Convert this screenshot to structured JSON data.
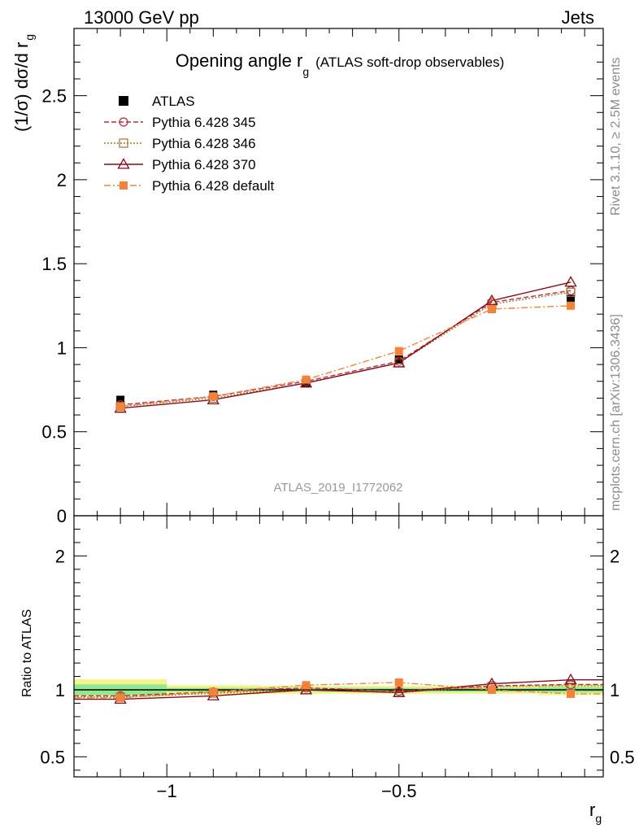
{
  "header": {
    "energy_label": "13000 GeV pp",
    "process_label": "Jets"
  },
  "side_labels": {
    "rivet": "Rivet 3.1.10, ≥ 2.5M events",
    "mcplots": "mcplots.cern.ch [arXiv:1306.3436]"
  },
  "main_panel": {
    "title_prefix": "Opening angle r",
    "title_sub": "g",
    "title_suffix": "(ATLAS soft-drop observables)",
    "ylabel": "(1/σ) dσ/d r",
    "ylabel_sub": "g",
    "analysis_id": "ATLAS_2019_I1772062",
    "y_ticks": [
      {
        "value": 0,
        "label": "0"
      },
      {
        "value": 0.5,
        "label": "0.5"
      },
      {
        "value": 1,
        "label": "1"
      },
      {
        "value": 1.5,
        "label": "1.5"
      },
      {
        "value": 2,
        "label": "2"
      },
      {
        "value": 2.5,
        "label": "2.5"
      }
    ]
  },
  "ratio_panel": {
    "ylabel": "Ratio to ATLAS",
    "y_ticks": [
      {
        "value": 0.5,
        "label": "0.5"
      },
      {
        "value": 1,
        "label": "1"
      },
      {
        "value": 2,
        "label": "2"
      }
    ]
  },
  "x_axis": {
    "label": "r",
    "label_sub": "g",
    "ticks": [
      {
        "value": -1,
        "label": "−1"
      },
      {
        "value": -0.5,
        "label": "−0.5"
      }
    ]
  },
  "legend": [
    {
      "name": "ATLAS",
      "color": "#000000",
      "marker": "filled-square",
      "line": "none"
    },
    {
      "name": "Pythia 6.428 345",
      "color": "#b03040",
      "marker": "open-circle",
      "line": "dashed"
    },
    {
      "name": "Pythia 6.428 346",
      "color": "#a0782c",
      "marker": "open-square",
      "line": "dotted"
    },
    {
      "name": "Pythia 6.428 370",
      "color": "#8b0a1a",
      "marker": "open-triangle",
      "line": "solid"
    },
    {
      "name": "Pythia 6.428 default",
      "color": "#f5823a",
      "marker": "filled-square",
      "line": "dashdot"
    }
  ],
  "chart_data": {
    "type": "line",
    "title": "Opening angle r_g (ATLAS soft-drop observables)",
    "xlabel": "r_g",
    "ylabel": "(1/σ) dσ/d r_g",
    "xlim": [
      -1.2,
      -0.06
    ],
    "ylim": [
      0,
      2.9
    ],
    "ratio_ylim": [
      0.35,
      2.3
    ],
    "ratio_ylabel": "Ratio to ATLAS",
    "x_bin_edges": [
      -1.2,
      -1.0,
      -0.8,
      -0.6,
      -0.4,
      -0.2,
      -0.06
    ],
    "x": [
      -1.1,
      -0.9,
      -0.7,
      -0.5,
      -0.3,
      -0.13
    ],
    "ratio_band": [
      {
        "x": [
          -1.2,
          -1.0
        ],
        "stat": [
          0.96,
          1.04
        ],
        "total": [
          0.95,
          1.08
        ]
      },
      {
        "x": [
          -1.0,
          -0.8
        ],
        "stat": [
          0.985,
          1.015
        ],
        "total": [
          0.965,
          1.035
        ]
      },
      {
        "x": [
          -0.8,
          -0.6
        ],
        "stat": [
          0.985,
          1.015
        ],
        "total": [
          0.97,
          1.03
        ]
      },
      {
        "x": [
          -0.6,
          -0.4
        ],
        "stat": [
          0.985,
          1.015
        ],
        "total": [
          0.97,
          1.03
        ]
      },
      {
        "x": [
          -0.4,
          -0.2
        ],
        "stat": [
          0.985,
          1.015
        ],
        "total": [
          0.97,
          1.03
        ]
      },
      {
        "x": [
          -0.2,
          -0.06
        ],
        "stat": [
          0.98,
          1.02
        ],
        "total": [
          0.96,
          1.04
        ]
      }
    ],
    "series": [
      {
        "name": "ATLAS",
        "values": [
          0.69,
          0.72,
          0.79,
          0.93,
          1.23,
          1.29
        ],
        "ratio": [
          1.0,
          1.0,
          1.0,
          1.0,
          1.0,
          1.0
        ]
      },
      {
        "name": "Pythia 6.428 345",
        "values": [
          0.66,
          0.71,
          0.8,
          0.92,
          1.27,
          1.34
        ],
        "ratio": [
          0.955,
          0.985,
          1.015,
          0.99,
          1.03,
          1.04
        ]
      },
      {
        "name": "Pythia 6.428 346",
        "values": [
          0.65,
          0.7,
          0.79,
          0.91,
          1.26,
          1.33
        ],
        "ratio": [
          0.945,
          0.975,
          1.0,
          0.98,
          1.025,
          1.03
        ]
      },
      {
        "name": "Pythia 6.428 370",
        "values": [
          0.64,
          0.69,
          0.79,
          0.91,
          1.28,
          1.39
        ],
        "ratio": [
          0.93,
          0.955,
          1.0,
          0.98,
          1.045,
          1.075
        ]
      },
      {
        "name": "Pythia 6.428 default",
        "values": [
          0.65,
          0.71,
          0.81,
          0.98,
          1.23,
          1.25
        ],
        "ratio": [
          0.94,
          0.985,
          1.035,
          1.055,
          1.0,
          0.97
        ]
      }
    ]
  }
}
